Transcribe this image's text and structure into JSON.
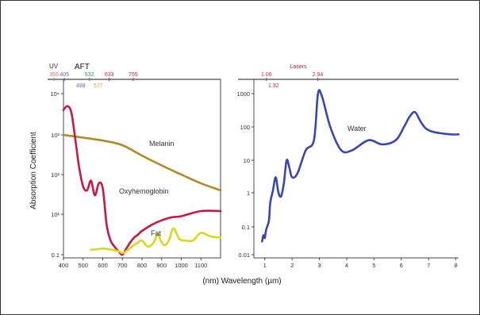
{
  "chart_data": [
    {
      "type": "line",
      "panel": "left",
      "x_ticks": [
        "400",
        "500",
        "600",
        "700",
        "800",
        "900",
        "1000",
        "1100"
      ],
      "y_ticks": [
        "10⁴",
        "10³",
        "10²",
        "10¹",
        "0.1"
      ],
      "ylabel": "Absorption Coefficient",
      "xlim": [
        400,
        1200
      ],
      "ylim": [
        0.1,
        10000
      ],
      "y_scale": "log",
      "top_label_uv": "UV",
      "top_label_aft": "AFT",
      "top_markers": [
        {
          "label": "355",
          "x": 355,
          "color": "#d06a6a",
          "row": "upper"
        },
        {
          "label": "405",
          "x": 405,
          "color": "#5a66c8",
          "row": "upper"
        },
        {
          "label": "532",
          "x": 532,
          "color": "#2f9a55",
          "row": "upper"
        },
        {
          "label": "633",
          "x": 633,
          "color": "#c22b45",
          "row": "upper"
        },
        {
          "label": "755",
          "x": 755,
          "color": "#b32a3e",
          "row": "upper"
        },
        {
          "label": "488",
          "x": 488,
          "color": "#8a6ac8",
          "row": "lower"
        },
        {
          "label": "577",
          "x": 577,
          "color": "#e0a020",
          "row": "lower"
        }
      ],
      "series": [
        {
          "name": "Melanin",
          "color": "#b08a25",
          "x": [
            400,
            500,
            600,
            700,
            800,
            900,
            1000,
            1100,
            1200
          ],
          "y": [
            1000,
            850,
            720,
            550,
            300,
            170,
            100,
            60,
            40
          ]
        },
        {
          "name": "Oxyhemoglobin",
          "color": "#c8183f",
          "x": [
            400,
            420,
            440,
            460,
            480,
            500,
            520,
            540,
            560,
            580,
            600,
            620,
            640,
            660,
            680,
            700,
            720,
            740,
            760,
            780,
            800,
            850,
            900,
            950,
            1000,
            1100,
            1200
          ],
          "y": [
            4000,
            5000,
            3500,
            800,
            150,
            50,
            40,
            70,
            30,
            60,
            45,
            3,
            0.5,
            0.25,
            0.15,
            0.1,
            0.2,
            0.4,
            0.7,
            1.0,
            1.5,
            3,
            5,
            7,
            8,
            12,
            12
          ]
        },
        {
          "name": "Fat",
          "color": "#d8d818",
          "x": [
            540,
            560,
            600,
            640,
            680,
            700,
            720,
            760,
            780,
            800,
            830,
            860,
            880,
            900,
            920,
            940,
            960,
            990,
            1020,
            1060,
            1100,
            1150,
            1200
          ],
          "y": [
            0.18,
            0.18,
            0.2,
            0.18,
            0.15,
            0.12,
            0.15,
            0.3,
            0.4,
            0.5,
            0.25,
            0.4,
            1.0,
            0.4,
            0.3,
            0.6,
            2.0,
            0.6,
            0.5,
            0.5,
            1.2,
            0.8,
            0.7
          ]
        }
      ]
    },
    {
      "type": "line",
      "panel": "right",
      "xlabel": "(nm) Wavelength (µm)",
      "x_ticks": [
        "1",
        "2",
        "3",
        "4",
        "5",
        "6",
        "7",
        "8"
      ],
      "y_ticks": [
        "1000",
        "100",
        "10",
        "1",
        "0.1",
        "0.01"
      ],
      "xlim": [
        0.6,
        8.1
      ],
      "ylim": [
        0.01,
        3000
      ],
      "y_scale": "log",
      "top_title": "Lasers",
      "top_markers": [
        {
          "label": "1.06",
          "x": 1.06,
          "color": "#c22b45",
          "row": "upper"
        },
        {
          "label": "2.94",
          "x": 2.94,
          "color": "#c22b45",
          "row": "upper"
        },
        {
          "label": "1.32",
          "x": 1.32,
          "color": "#c22b45",
          "row": "lower"
        }
      ],
      "series": [
        {
          "name": "Water",
          "color": "#3a46b0",
          "x": [
            0.9,
            0.95,
            1.0,
            1.05,
            1.15,
            1.2,
            1.3,
            1.4,
            1.5,
            1.6,
            1.7,
            1.8,
            1.9,
            2.0,
            2.2,
            2.5,
            2.8,
            2.95,
            3.1,
            3.4,
            3.8,
            4.2,
            4.8,
            5.3,
            5.8,
            6.1,
            6.3,
            6.5,
            6.7,
            6.9,
            7.2,
            7.8,
            8.1
          ],
          "y": [
            0.03,
            0.05,
            0.04,
            0.08,
            0.15,
            0.5,
            1.2,
            3,
            1,
            0.8,
            2,
            10,
            6,
            3,
            4,
            20,
            40,
            1000,
            800,
            100,
            20,
            20,
            40,
            30,
            40,
            100,
            200,
            280,
            150,
            90,
            70,
            60,
            60
          ]
        }
      ]
    }
  ]
}
